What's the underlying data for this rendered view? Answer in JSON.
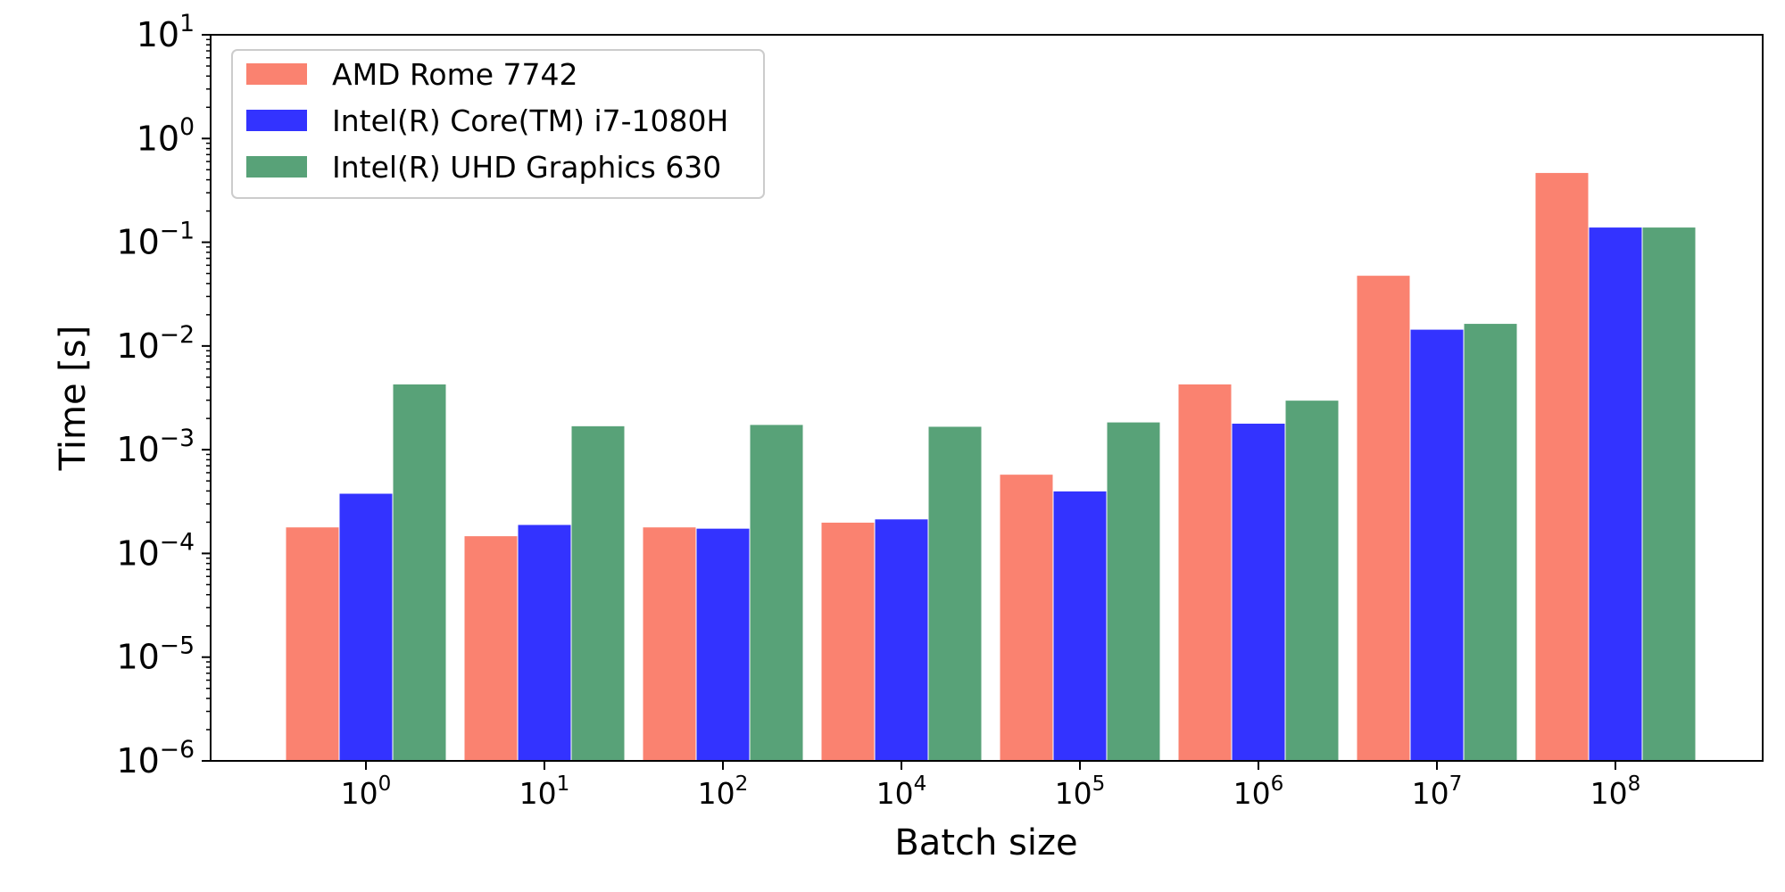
{
  "chart_data": {
    "type": "bar",
    "title": "",
    "xlabel": "Batch size",
    "ylabel": "Time [s]",
    "yscale": "log",
    "ylim": [
      1e-06,
      10
    ],
    "grid": false,
    "legend_position": "top-left",
    "categories": [
      {
        "base": "10",
        "exp": "0"
      },
      {
        "base": "10",
        "exp": "1"
      },
      {
        "base": "10",
        "exp": "2"
      },
      {
        "base": "10",
        "exp": "4"
      },
      {
        "base": "10",
        "exp": "5"
      },
      {
        "base": "10",
        "exp": "6"
      },
      {
        "base": "10",
        "exp": "7"
      },
      {
        "base": "10",
        "exp": "8"
      }
    ],
    "y_ticks": [
      {
        "value": 1e-06,
        "base": "10",
        "exp": "−6"
      },
      {
        "value": 1e-05,
        "base": "10",
        "exp": "−5"
      },
      {
        "value": 0.0001,
        "base": "10",
        "exp": "−4"
      },
      {
        "value": 0.001,
        "base": "10",
        "exp": "−3"
      },
      {
        "value": 0.01,
        "base": "10",
        "exp": "−2"
      },
      {
        "value": 0.1,
        "base": "10",
        "exp": "−1"
      },
      {
        "value": 1,
        "base": "10",
        "exp": "0"
      },
      {
        "value": 10,
        "base": "10",
        "exp": "1"
      }
    ],
    "series": [
      {
        "name": "AMD Rome 7742",
        "color": "#fa8270",
        "values": [
          0.00018,
          0.000148,
          0.00018,
          0.0002,
          0.00058,
          0.0043,
          0.048,
          0.47
        ]
      },
      {
        "name": "Intel(R) Core(TM) i7-1080H",
        "color": "#3333ff",
        "values": [
          0.00038,
          0.00019,
          0.000175,
          0.000215,
          0.0004,
          0.0018,
          0.0145,
          0.14
        ]
      },
      {
        "name": "Intel(R) UHD Graphics 630",
        "color": "#58a278",
        "values": [
          0.0043,
          0.0017,
          0.00175,
          0.00168,
          0.00185,
          0.003,
          0.0165,
          0.14
        ]
      }
    ]
  }
}
